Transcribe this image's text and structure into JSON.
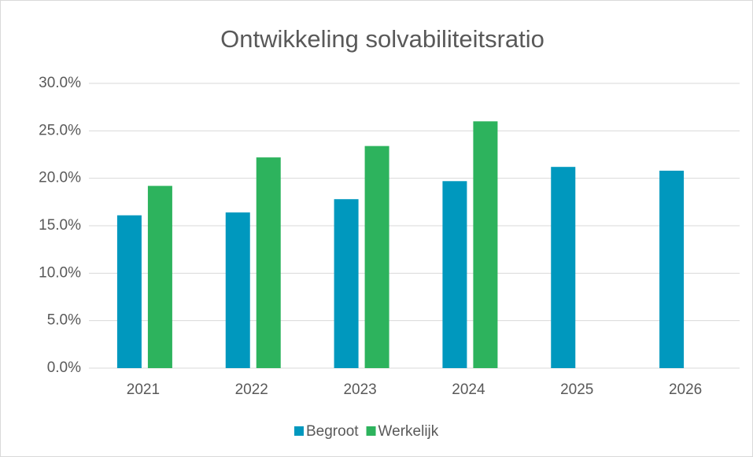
{
  "chart_data": {
    "type": "bar",
    "title": "Ontwikkeling solvabiliteitsratio",
    "categories": [
      "2021",
      "2022",
      "2023",
      "2024",
      "2025",
      "2026"
    ],
    "series": [
      {
        "name": "Begroot",
        "color": "#0098be",
        "values": [
          16.1,
          16.4,
          17.8,
          19.7,
          21.2,
          20.8
        ]
      },
      {
        "name": "Werkelijk",
        "color": "#2db35d",
        "values": [
          19.2,
          22.2,
          23.4,
          26.0,
          null,
          null
        ]
      }
    ],
    "ylim": [
      0,
      30
    ],
    "yticks": [
      {
        "value": 0,
        "label": "0.0%"
      },
      {
        "value": 5,
        "label": "5.0%"
      },
      {
        "value": 10,
        "label": "10.0%"
      },
      {
        "value": 15,
        "label": "15.0%"
      },
      {
        "value": 20,
        "label": "20.0%"
      },
      {
        "value": 25,
        "label": "25.0%"
      },
      {
        "value": 30,
        "label": "30.0%"
      }
    ],
    "grid": true,
    "legend": "bottom"
  }
}
